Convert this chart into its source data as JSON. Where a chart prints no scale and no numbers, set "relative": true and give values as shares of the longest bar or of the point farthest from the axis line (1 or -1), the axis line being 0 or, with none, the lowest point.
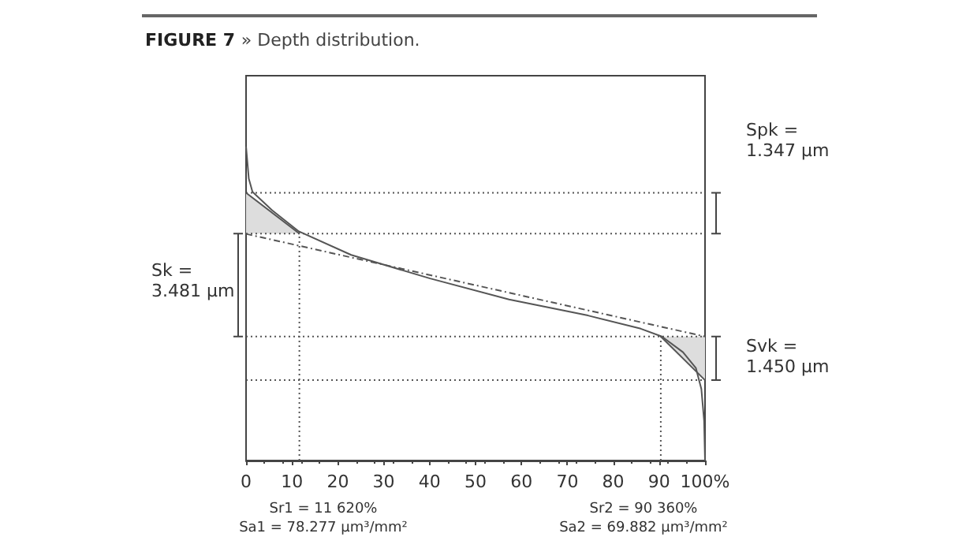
{
  "chart_data": {
    "type": "line",
    "title": "FIGURE 7 » Depth distribution.",
    "relative": true,
    "tick_labels": "x",
    "grid": false,
    "marker": "none",
    "xlim": [
      0,
      100
    ],
    "xticks": [
      0,
      10,
      20,
      30,
      40,
      50,
      60,
      70,
      80,
      90,
      {
        "value": 100,
        "label": "100%"
      }
    ],
    "series": [
      {
        "color": "#555555",
        "line_style": "solid",
        "x": [
          0,
          0.6,
          1.4,
          5.7,
          11.5,
          22.9,
          40.1,
          57.3,
          74.5,
          86,
          90.6,
          95.2,
          98,
          99.2,
          99.8,
          100
        ],
        "values": [
          1,
          0.898,
          0.856,
          0.797,
          0.73,
          0.655,
          0.58,
          0.513,
          0.462,
          0.42,
          0.395,
          0.345,
          0.295,
          0.228,
          0.127,
          0
        ]
      },
      {
        "color": "#555555",
        "line_style": "dashed",
        "x": [
          0,
          100
        ],
        "values": [
          0.722,
          0.395
        ]
      },
      {
        "color": "#555555",
        "line_style": "solid",
        "x": [
          0,
          11.62
        ],
        "values": [
          0.853,
          0.723
        ],
        "lower": [
          0.723,
          0.723
        ],
        "upper": [
          0.853,
          0.723
        ]
      },
      {
        "color": "#555555",
        "line_style": "solid",
        "x": [
          90.36,
          100
        ],
        "values": [
          0.395,
          0.256
        ],
        "lower": [
          0.395,
          0.256
        ],
        "upper": [
          0.395,
          0.395
        ]
      }
    ],
    "ref_lines": [
      {
        "axis": "y",
        "value": 0.853,
        "line_style": "dotted",
        "color": "#555555"
      },
      {
        "axis": "y",
        "value": 0.723,
        "line_style": "dotted",
        "color": "#555555"
      },
      {
        "axis": "y",
        "value": 0.395,
        "line_style": "dotted",
        "color": "#555555"
      },
      {
        "axis": "y",
        "value": 0.256,
        "line_style": "dotted",
        "color": "#555555"
      },
      {
        "axis": "x",
        "value": 11.62,
        "line_style": "dotted",
        "color": "#555555"
      },
      {
        "axis": "x",
        "value": 90.36,
        "line_style": "dotted",
        "color": "#555555"
      }
    ],
    "annotations": [
      "Spk =\n1.347 µm",
      "Sk =\n3.481 µm",
      "Svk =\n1.450 µm",
      "Sr1 = 11 620%",
      "Sa1 = 78.277 µm³/mm²",
      "Sr2 = 90 360%",
      "Sa2 = 69.882 µm³/mm²"
    ]
  }
}
